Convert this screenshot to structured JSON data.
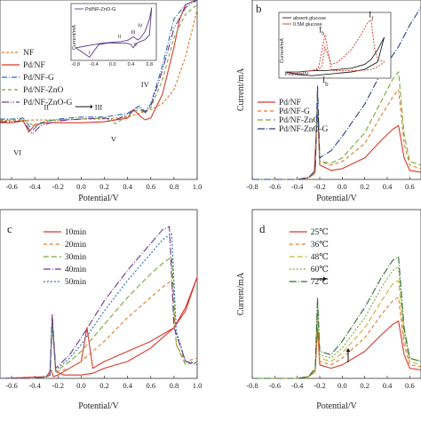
{
  "chart_data": [
    {
      "panel": "a",
      "type": "line",
      "xlabel": "Potential/V",
      "ylabel": "",
      "xlim": [
        -0.7,
        1.0
      ],
      "ylim": [
        -60,
        130
      ],
      "xticks": [
        "-0.6",
        "-0.4",
        "-0.2",
        "0.0",
        "0.2",
        "0.4",
        "0.6",
        "0.8",
        "1.0"
      ],
      "legend_position": "left",
      "annotations": [
        "II",
        "III",
        "IV",
        "V",
        "VI"
      ],
      "series": [
        {
          "name": "NF",
          "color": "#e07b28",
          "dash": "3,2",
          "x": [
            -0.7,
            -0.6,
            -0.4,
            -0.2,
            0.0,
            0.2,
            0.4,
            0.5,
            0.6,
            0.7,
            0.8,
            0.9,
            1.0
          ],
          "y": [
            2,
            2,
            3,
            3,
            4,
            4,
            6,
            10,
            14,
            20,
            35,
            70,
            120
          ]
        },
        {
          "name": "Pd/NF",
          "color": "#d9382a",
          "dash": "",
          "x": [
            -0.7,
            -0.6,
            -0.5,
            -0.45,
            -0.4,
            -0.3,
            -0.2,
            0.0,
            0.2,
            0.4,
            0.45,
            0.5,
            0.55,
            0.6,
            0.7,
            0.8,
            0.85,
            0.9,
            0.95,
            1.0
          ],
          "y": [
            0,
            0,
            2,
            -10,
            -2,
            0,
            0,
            0,
            1,
            5,
            14,
            8,
            3,
            5,
            30,
            80,
            110,
            125,
            128,
            130
          ]
        },
        {
          "name": "Pd/NF-G",
          "color": "#2c6db0",
          "dash": "6,2,1,2",
          "x": [
            -0.7,
            -0.6,
            -0.5,
            -0.42,
            -0.35,
            -0.2,
            0.0,
            0.2,
            0.3,
            0.4,
            0.5,
            0.55,
            0.6,
            0.7,
            0.8,
            0.9,
            1.0
          ],
          "y": [
            4,
            4,
            5,
            -8,
            0,
            4,
            6,
            6,
            8,
            10,
            18,
            12,
            20,
            60,
            110,
            125,
            130
          ]
        },
        {
          "name": "Pd/NF-ZnO",
          "color": "#79a83a",
          "dash": "4,3",
          "x": [
            -0.7,
            -0.6,
            -0.5,
            -0.4,
            -0.3,
            -0.2,
            0.0,
            0.2,
            0.3,
            0.4,
            0.5,
            0.55,
            0.6,
            0.7,
            0.8,
            0.9,
            1.0
          ],
          "y": [
            3,
            3,
            4,
            -4,
            2,
            3,
            4,
            5,
            -1,
            8,
            14,
            10,
            16,
            45,
            90,
            115,
            125
          ]
        },
        {
          "name": "Pd/NF-ZnO-G",
          "color": "#6d3a8a",
          "dash": "8,2,1,2,1,2",
          "x": [
            -0.7,
            -0.6,
            -0.5,
            -0.42,
            -0.35,
            -0.2,
            0.0,
            0.2,
            0.3,
            0.4,
            0.5,
            0.55,
            0.6,
            0.7,
            0.8,
            0.9,
            1.0
          ],
          "y": [
            1,
            1,
            2,
            -12,
            -3,
            2,
            4,
            5,
            3,
            9,
            16,
            11,
            18,
            55,
            100,
            122,
            130
          ]
        }
      ],
      "inset": {
        "legend": "Pd/NF-ZnO-G",
        "ylabel": "Current/mA",
        "xlabel": "",
        "xticks": [
          "-0.8",
          "-0.4",
          "0.0",
          "0.4",
          "0.8"
        ],
        "annotations": [
          "I",
          "II",
          "III",
          "IV",
          "V"
        ],
        "series": [
          {
            "name": "Pd/NF-ZnO-G",
            "color": "#5a3d8a",
            "x": [
              -0.8,
              -0.6,
              -0.4,
              -0.3,
              -0.2,
              0.0,
              0.2,
              0.35,
              0.45,
              0.55,
              0.6,
              0.7,
              0.8,
              0.85,
              0.8,
              0.7,
              0.6,
              0.5,
              0.45,
              0.4,
              0.3,
              0.1,
              -0.1,
              -0.3,
              -0.4,
              -0.5,
              -0.6,
              -0.7,
              -0.8
            ],
            "y": [
              -6,
              -4,
              -2,
              -1,
              0,
              1,
              2,
              4,
              8,
              4,
              6,
              14,
              30,
              45,
              10,
              4,
              2,
              -1,
              -6,
              -2,
              0,
              0,
              0,
              -2,
              -10,
              -18,
              -14,
              -10,
              -6
            ]
          }
        ]
      }
    },
    {
      "panel": "b",
      "type": "line",
      "xlabel": "Potential/V",
      "ylabel": "Current/mA",
      "xlim": [
        -0.8,
        0.7
      ],
      "ylim": [
        0,
        100
      ],
      "xticks": [
        "-0.8",
        "-0.6",
        "-0.4",
        "-0.2",
        "0.0",
        "0.2",
        "0.4",
        "0.6"
      ],
      "legend_position": "center-left",
      "annotations": [
        "I_b"
      ],
      "series": [
        {
          "name": "Pd/NF",
          "color": "#d9382a",
          "dash": "",
          "x": [
            -0.8,
            -0.6,
            -0.4,
            -0.3,
            -0.25,
            -0.22,
            -0.2,
            -0.1,
            0.0,
            0.2,
            0.35,
            0.45,
            0.5,
            0.55,
            0.6,
            0.7
          ],
          "y": [
            0,
            0,
            0,
            1,
            3,
            40,
            8,
            5,
            6,
            12,
            22,
            28,
            30,
            12,
            5,
            4
          ]
        },
        {
          "name": "Pd/NF-G",
          "color": "#e07b28",
          "dash": "4,3",
          "x": [
            -0.8,
            -0.6,
            -0.4,
            -0.3,
            -0.24,
            -0.22,
            -0.2,
            -0.1,
            0.0,
            0.2,
            0.35,
            0.45,
            0.5,
            0.55,
            0.6,
            0.7
          ],
          "y": [
            0,
            0,
            0,
            1,
            4,
            45,
            10,
            8,
            10,
            20,
            36,
            46,
            50,
            20,
            8,
            6
          ]
        },
        {
          "name": "Pd/NF-ZnO",
          "color": "#79a83a",
          "dash": "6,3",
          "x": [
            -0.8,
            -0.6,
            -0.4,
            -0.3,
            -0.24,
            -0.22,
            -0.2,
            -0.1,
            0.0,
            0.2,
            0.35,
            0.45,
            0.5,
            0.55,
            0.6,
            0.7
          ],
          "y": [
            0,
            0,
            0,
            1,
            4,
            48,
            10,
            9,
            12,
            26,
            44,
            56,
            60,
            25,
            10,
            8
          ]
        },
        {
          "name": "Pd/NF-ZnO-G",
          "color": "#2c3e8a",
          "dash": "8,2,1,2",
          "x": [
            -0.8,
            -0.6,
            -0.4,
            -0.3,
            -0.24,
            -0.22,
            -0.2,
            -0.1,
            0.0,
            0.2,
            0.35,
            0.5,
            0.6,
            0.7
          ],
          "y": [
            0,
            0,
            0,
            1,
            5,
            52,
            12,
            16,
            24,
            42,
            60,
            74,
            86,
            96
          ]
        }
      ],
      "inset": {
        "legend": [
          "absent glucose",
          "0.5M glucose"
        ],
        "ylabel": "Current/mA",
        "xlabel": "Potential/V",
        "annotations": [
          "I_b",
          "I_f"
        ],
        "series": [
          {
            "name": "absent glucose",
            "color": "#222222",
            "x": [
              -0.8,
              -0.6,
              -0.4,
              -0.2,
              0.0,
              0.2,
              0.4,
              0.5,
              0.6,
              0.7,
              0.6,
              0.4,
              0.2,
              0.0,
              -0.2,
              -0.4,
              -0.6,
              -0.8
            ],
            "y": [
              0,
              0,
              1,
              1,
              2,
              3,
              6,
              10,
              18,
              28,
              8,
              2,
              0,
              -1,
              -2,
              -3,
              -2,
              0
            ]
          },
          {
            "name": "0.5M glucose",
            "color": "#d9382a",
            "x": [
              -0.8,
              -0.6,
              -0.4,
              -0.3,
              -0.25,
              -0.2,
              -0.1,
              0.0,
              0.2,
              0.35,
              0.45,
              0.5,
              0.55,
              0.6,
              0.7,
              0.6,
              0.5,
              0.3,
              0.1,
              -0.1,
              -0.2,
              -0.3,
              -0.4,
              -0.6,
              -0.8
            ],
            "y": [
              0,
              0,
              1,
              2,
              4,
              20,
              6,
              8,
              18,
              30,
              40,
              42,
              20,
              10,
              8,
              4,
              2,
              1,
              1,
              1,
              30,
              3,
              1,
              0,
              0
            ]
          }
        ]
      }
    },
    {
      "panel": "c",
      "type": "line",
      "xlabel": "Potential/V",
      "ylabel": "",
      "xlim": [
        -0.7,
        1.0
      ],
      "ylim": [
        0,
        100
      ],
      "xticks": [
        "-0.6",
        "-0.4",
        "-0.2",
        "0.0",
        "0.2",
        "0.4",
        "0.6",
        "0.8",
        "1.0"
      ],
      "legend_position": "top-center",
      "series": [
        {
          "name": "10min",
          "color": "#d9382a",
          "dash": "",
          "x": [
            -0.7,
            -0.4,
            -0.3,
            -0.27,
            -0.25,
            -0.22,
            -0.15,
            0.0,
            0.1,
            0.2,
            0.4,
            0.6,
            0.8,
            0.9,
            1.0,
            0.9,
            0.8,
            0.6,
            0.4,
            0.2,
            0.1,
            0.05,
            0.0,
            -0.2,
            -0.24,
            -0.26,
            -0.3,
            -0.7
          ],
          "y": [
            0,
            0,
            1,
            2,
            36,
            4,
            2,
            2,
            3,
            6,
            10,
            18,
            30,
            42,
            60,
            40,
            30,
            22,
            16,
            10,
            6,
            30,
            10,
            2,
            1,
            5,
            1,
            0
          ]
        },
        {
          "name": "20min",
          "color": "#e07b28",
          "dash": "4,3",
          "x": [
            -0.7,
            -0.4,
            -0.3,
            -0.27,
            -0.25,
            -0.22,
            -0.1,
            0.0,
            0.2,
            0.4,
            0.6,
            0.7,
            0.78,
            0.82,
            0.9,
            1.0
          ],
          "y": [
            0,
            0,
            1,
            2,
            32,
            4,
            6,
            10,
            22,
            36,
            48,
            54,
            58,
            20,
            10,
            12
          ]
        },
        {
          "name": "30min",
          "color": "#79a83a",
          "dash": "6,3",
          "x": [
            -0.7,
            -0.4,
            -0.3,
            -0.27,
            -0.25,
            -0.22,
            -0.1,
            0.0,
            0.2,
            0.4,
            0.6,
            0.7,
            0.78,
            0.82,
            0.9,
            1.0
          ],
          "y": [
            0,
            0,
            1,
            2,
            34,
            4,
            10,
            16,
            32,
            48,
            62,
            68,
            72,
            20,
            8,
            10
          ]
        },
        {
          "name": "40min",
          "color": "#6d3a8a",
          "dash": "8,2,1,2",
          "x": [
            -0.7,
            -0.4,
            -0.3,
            -0.27,
            -0.25,
            -0.22,
            -0.1,
            0.0,
            0.2,
            0.4,
            0.6,
            0.7,
            0.76,
            0.8,
            0.9,
            1.0
          ],
          "y": [
            0,
            0,
            1,
            2,
            38,
            6,
            14,
            24,
            46,
            64,
            80,
            88,
            90,
            30,
            10,
            8
          ]
        },
        {
          "name": "50min",
          "color": "#2c6db0",
          "dash": "2,2",
          "x": [
            -0.7,
            -0.4,
            -0.3,
            -0.27,
            -0.25,
            -0.22,
            -0.1,
            0.0,
            0.2,
            0.4,
            0.6,
            0.7,
            0.78,
            0.82,
            0.9,
            1.0
          ],
          "y": [
            0,
            0,
            1,
            2,
            33,
            5,
            12,
            20,
            40,
            58,
            74,
            82,
            86,
            28,
            10,
            9
          ]
        }
      ]
    },
    {
      "panel": "d",
      "type": "line",
      "xlabel": "Potential/V",
      "ylabel": "Current/mA",
      "xlim": [
        -0.8,
        0.7
      ],
      "ylim": [
        0,
        100
      ],
      "xticks": [
        "-0.8",
        "-0.6",
        "-0.4",
        "-0.2",
        "0.0",
        "0.2",
        "0.4",
        "0.6"
      ],
      "legend_position": "top-center",
      "series": [
        {
          "name": "25℃",
          "color": "#d9382a",
          "dash": "",
          "x": [
            -0.8,
            -0.6,
            -0.4,
            -0.3,
            -0.24,
            -0.22,
            -0.2,
            -0.1,
            0.0,
            0.2,
            0.35,
            0.45,
            0.5,
            0.55,
            0.6,
            0.7
          ],
          "y": [
            0,
            0,
            0,
            1,
            4,
            30,
            8,
            6,
            8,
            16,
            26,
            32,
            34,
            14,
            6,
            5
          ]
        },
        {
          "name": "36℃",
          "color": "#e07b28",
          "dash": "4,3",
          "x": [
            -0.8,
            -0.6,
            -0.4,
            -0.3,
            -0.24,
            -0.22,
            -0.2,
            -0.1,
            0.0,
            0.2,
            0.35,
            0.45,
            0.5,
            0.55,
            0.6,
            0.7
          ],
          "y": [
            0,
            0,
            0,
            1,
            4,
            36,
            10,
            8,
            12,
            24,
            38,
            46,
            48,
            20,
            8,
            7
          ]
        },
        {
          "name": "48℃",
          "color": "#c9b23a",
          "dash": "6,3",
          "x": [
            -0.8,
            -0.6,
            -0.4,
            -0.3,
            -0.24,
            -0.22,
            -0.2,
            -0.1,
            0.0,
            0.2,
            0.35,
            0.45,
            0.5,
            0.55,
            0.6,
            0.7
          ],
          "y": [
            0,
            0,
            0,
            1,
            5,
            40,
            12,
            10,
            15,
            30,
            46,
            56,
            58,
            24,
            10,
            8
          ]
        },
        {
          "name": "60℃",
          "color": "#79a83a",
          "dash": "2,2",
          "x": [
            -0.8,
            -0.6,
            -0.4,
            -0.3,
            -0.24,
            -0.22,
            -0.2,
            -0.1,
            0.0,
            0.2,
            0.35,
            0.45,
            0.5,
            0.55,
            0.6,
            0.7
          ],
          "y": [
            0,
            0,
            0,
            1,
            5,
            44,
            14,
            12,
            18,
            36,
            54,
            64,
            66,
            28,
            12,
            10
          ]
        },
        {
          "name": "72℃",
          "color": "#2f6b3a",
          "dash": "8,2,1,2",
          "x": [
            -0.8,
            -0.6,
            -0.4,
            -0.3,
            -0.24,
            -0.22,
            -0.2,
            -0.1,
            0.0,
            0.2,
            0.35,
            0.45,
            0.5,
            0.55,
            0.6,
            0.7
          ],
          "y": [
            0,
            0,
            0,
            1,
            6,
            48,
            16,
            14,
            22,
            42,
            60,
            70,
            72,
            30,
            12,
            10
          ]
        }
      ]
    }
  ],
  "panel_letters": [
    "b",
    "c",
    "d"
  ]
}
